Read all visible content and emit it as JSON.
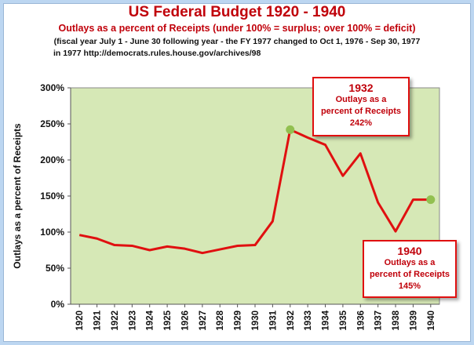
{
  "header": {
    "title": "US Federal Budget 1920 - 1940",
    "subtitle": "Outlays as a percent of Receipts (under 100% = surplus; over 100% = deficit)",
    "note_line1": "(fiscal year July 1 - June 30 following year - the FY 1977 changed to Oct 1, 1976 - Sep 30, 1977",
    "note_line2": "in 1977 http://democrats.rules.house.gov/archives/98"
  },
  "callouts": {
    "c1932": {
      "year": "1932",
      "line1": "Outlays as a",
      "line2": "percent of Receipts",
      "value": "242%"
    },
    "c1940": {
      "year": "1940",
      "line1": "Outlays as a",
      "line2": "percent of Receipts",
      "value": "145%"
    }
  },
  "chart_data": {
    "type": "line",
    "ylabel": "Outlays as a percent of  Receipts",
    "xlabel": "",
    "categories": [
      "1920",
      "1921",
      "1922",
      "1923",
      "1924",
      "1925",
      "1926",
      "1927",
      "1928",
      "1929",
      "1930",
      "1931",
      "1932",
      "1933",
      "1934",
      "1935",
      "1936",
      "1937",
      "1938",
      "1939",
      "1940"
    ],
    "series": [
      {
        "values": [
          96,
          91,
          82,
          81,
          75,
          80,
          77,
          71,
          76,
          81,
          82,
          115,
          242,
          231,
          221,
          178,
          209,
          141,
          101,
          145,
          145
        ]
      }
    ],
    "highlight_points": [
      "1932",
      "1940"
    ],
    "ylim": [
      0,
      300
    ],
    "yticks": [
      0,
      50,
      100,
      150,
      200,
      250,
      300
    ],
    "ytick_labels": [
      "0%",
      "50%",
      "100%",
      "150%",
      "200%",
      "250%",
      "300%"
    ],
    "grid": false,
    "colors": {
      "line": "#e01010",
      "plot_bg": "#d6e8b6",
      "marker": "#92c050",
      "text": "#c0000a"
    }
  }
}
